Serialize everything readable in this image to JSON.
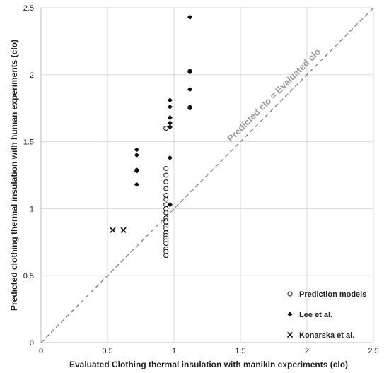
{
  "chart_data": {
    "type": "scatter",
    "xlabel": "Evaluated Clothing thermal insulation with manikin experiments (clo)",
    "ylabel": "Predicted clothing thermal insulation with human experiments (clo)",
    "xlim": [
      0,
      2.5
    ],
    "ylim": [
      0,
      2.5
    ],
    "x_ticks": [
      "0",
      "0.5",
      "1",
      "1.5",
      "2",
      "2.5"
    ],
    "y_ticks": [
      "0",
      "0.5",
      "1",
      "1.5",
      "2",
      "2.5"
    ],
    "grid": true,
    "legend_position": "bottom-right",
    "annotation": "Predicted clo = Evaluated clo",
    "reference_line": {
      "x": [
        0,
        2.5
      ],
      "y": [
        0,
        2.5
      ],
      "style": "dashed"
    },
    "series": [
      {
        "name": "Prediction models",
        "marker": "open-circle",
        "x": [
          0.94,
          0.94,
          0.94,
          0.94,
          0.94,
          0.94,
          0.94,
          0.94,
          0.94,
          0.94,
          0.94,
          0.94,
          0.94,
          0.94,
          0.94,
          0.94,
          0.94,
          0.94,
          0.94,
          0.94,
          0.94,
          0.94,
          0.94
        ],
        "y": [
          1.6,
          1.3,
          1.25,
          1.2,
          1.15,
          1.1,
          1.07,
          1.03,
          1.0,
          0.97,
          0.93,
          0.91,
          0.9,
          0.87,
          0.85,
          0.82,
          0.8,
          0.78,
          0.76,
          0.74,
          0.7,
          0.68,
          0.65
        ]
      },
      {
        "name": "Lee et al.",
        "marker": "filled-diamond",
        "x": [
          1.12,
          1.12,
          1.12,
          1.12,
          1.12,
          1.12,
          0.97,
          0.97,
          0.97,
          0.97,
          0.97,
          0.97,
          0.97,
          0.72,
          0.72,
          0.72,
          0.72,
          0.72
        ],
        "y": [
          2.43,
          2.03,
          2.02,
          1.89,
          1.76,
          1.75,
          1.81,
          1.76,
          1.68,
          1.64,
          1.61,
          1.38,
          1.03,
          1.44,
          1.4,
          1.29,
          1.28,
          1.18
        ]
      },
      {
        "name": "Konarska et al.",
        "marker": "x",
        "x": [
          0.54,
          0.62
        ],
        "y": [
          0.84,
          0.84
        ]
      }
    ]
  },
  "colors": {
    "marker": "#111111",
    "grid": "#d9d9d9",
    "reference_line": "#808080",
    "annotation": "#9a9a9a"
  }
}
